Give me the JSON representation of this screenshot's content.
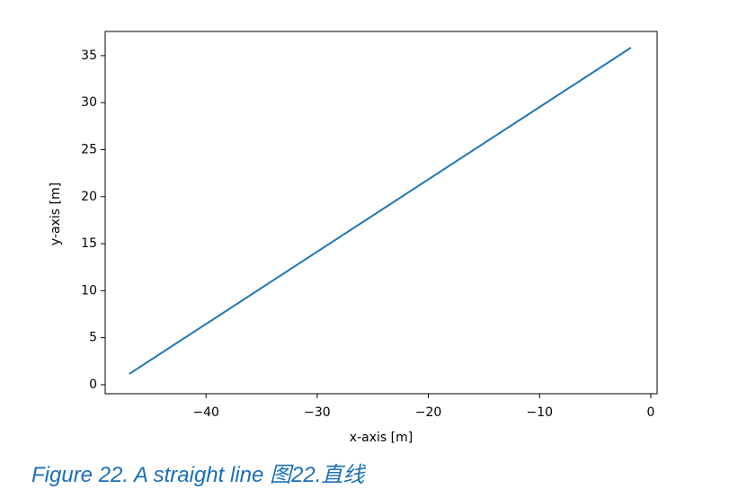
{
  "chart_data": {
    "type": "line",
    "x": [
      -46.9,
      -1.78
    ],
    "series": [
      {
        "color": "#1f77b4",
        "values": [
          1.15,
          35.85
        ]
      }
    ],
    "xlabel": "x-axis [m]",
    "ylabel": "y-axis [m]",
    "xlim": [
      -49.07,
      0.57
    ],
    "xticks": [
      {
        "value": -40,
        "label": "−40"
      },
      {
        "value": -30,
        "label": "−30"
      },
      {
        "value": -20,
        "label": "−20"
      },
      {
        "value": -10,
        "label": "−10"
      },
      0
    ],
    "ylim": [
      -0.96,
      37.57
    ],
    "yticks": [
      0,
      5,
      10,
      15,
      20,
      25,
      30,
      35
    ],
    "grid": false
  },
  "caption": "Figure 22. A straight line 图22.直线"
}
